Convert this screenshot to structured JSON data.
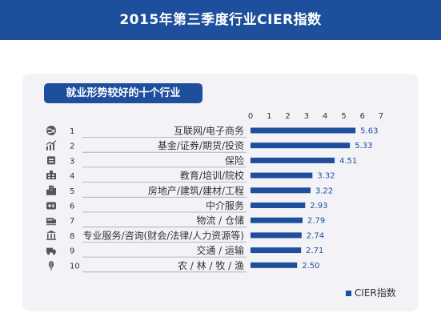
{
  "header": {
    "title": "2015年第三季度行业CIER指数"
  },
  "section": {
    "title": "就业形势较好的十个行业"
  },
  "colors": {
    "header": "#1d4f9c",
    "bar": "#1d4f9c",
    "card": "#f3f2f7",
    "value": "#1d4f9c",
    "icon": "#555555"
  },
  "icons": [
    "globe-icon",
    "finance-chart-icon",
    "insurance-box-icon",
    "education-icon",
    "building-icon",
    "agency-icon",
    "logistics-icon",
    "professional-services-icon",
    "truck-icon",
    "agriculture-icon"
  ],
  "chart_data": {
    "type": "bar",
    "orientation": "horizontal",
    "ranks": [
      "1",
      "2",
      "3",
      "4",
      "5",
      "6",
      "7",
      "8",
      "9",
      "10"
    ],
    "categories": [
      "互联网/电子商务",
      "基金/证券/期货/投资",
      "保险",
      "教育/培训/院校",
      "房地产/建筑/建材/工程",
      "中介服务",
      "物流 / 仓储",
      "专业服务/咨询(财会/法律/人力资源等)",
      "交通 / 运输",
      "农 / 林 / 牧 / 渔"
    ],
    "series": [
      {
        "name": "CIER指数",
        "values": [
          5.63,
          5.33,
          4.51,
          3.32,
          3.22,
          2.93,
          2.79,
          2.74,
          2.71,
          2.5
        ]
      }
    ],
    "value_labels": [
      "5.63",
      "5.33",
      "4.51",
      "3.32",
      "3.22",
      "2.93",
      "2.79",
      "2.74",
      "2.71",
      "2.50"
    ],
    "x_ticks": [
      "0",
      "1",
      "2",
      "3",
      "4",
      "5",
      "6",
      "7"
    ],
    "xlim": [
      0,
      7
    ],
    "axis_position": "top",
    "grid": false,
    "legend_position": "bottom-right"
  }
}
